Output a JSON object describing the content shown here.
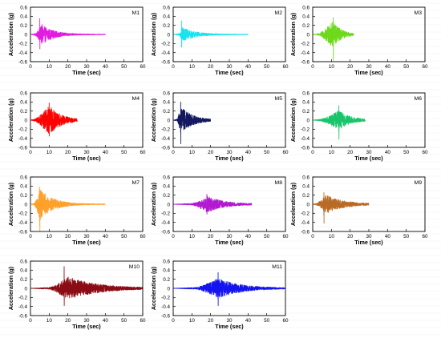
{
  "figure": {
    "xlabel": "Time (sec)",
    "ylabel": "Acceleration (g)",
    "yticks": [
      "0.6",
      "0.4",
      "0.2",
      "0",
      "-0.2",
      "-0.4",
      "-0.6"
    ],
    "xticks": [
      "0",
      "10",
      "20",
      "30",
      "40",
      "50",
      "60"
    ]
  },
  "chart_data": [
    {
      "type": "line",
      "title": "M1",
      "color": "#e21be2",
      "xlim": [
        0,
        60
      ],
      "ylim": [
        -0.6,
        0.6
      ],
      "duration": 40,
      "active_start": 2.5,
      "active_end": 20,
      "peak_time": 5,
      "peak_pos": 0.35,
      "peak_neg": -0.32,
      "envelope_peak": 0.22,
      "envelope_peak_time": 6
    },
    {
      "type": "line",
      "title": "M2",
      "color": "#18e3ef",
      "xlim": [
        0,
        60
      ],
      "ylim": [
        -0.6,
        0.6
      ],
      "duration": 40,
      "active_start": 3,
      "active_end": 20,
      "peak_time": 4.5,
      "peak_pos": 0.3,
      "peak_neg": -0.28,
      "envelope_peak": 0.15,
      "envelope_peak_time": 5
    },
    {
      "type": "line",
      "title": "M3",
      "color": "#6ed91b",
      "xlim": [
        0,
        60
      ],
      "ylim": [
        -0.6,
        0.6
      ],
      "duration": 22,
      "active_start": 3,
      "active_end": 20,
      "peak_time": 11,
      "peak_pos": 0.37,
      "peak_neg": -0.57,
      "envelope_peak": 0.3,
      "envelope_peak_time": 11
    },
    {
      "type": "line",
      "title": "M4",
      "color": "#ff0000",
      "xlim": [
        0,
        60
      ],
      "ylim": [
        -0.6,
        0.6
      ],
      "duration": 25,
      "active_start": 2,
      "active_end": 24,
      "peak_time": 10,
      "peak_pos": 0.38,
      "peak_neg": -0.35,
      "envelope_peak": 0.32,
      "envelope_peak_time": 10
    },
    {
      "type": "line",
      "title": "M5",
      "color": "#14185e",
      "xlim": [
        0,
        60
      ],
      "ylim": [
        -0.6,
        0.6
      ],
      "duration": 20,
      "active_start": 2,
      "active_end": 18,
      "peak_time": 4,
      "peak_pos": 0.4,
      "peak_neg": -0.52,
      "envelope_peak": 0.3,
      "envelope_peak_time": 4
    },
    {
      "type": "line",
      "title": "M6",
      "color": "#19c46a",
      "xlim": [
        0,
        60
      ],
      "ylim": [
        -0.6,
        0.6
      ],
      "duration": 28,
      "active_start": 4,
      "active_end": 27,
      "peak_time": 14,
      "peak_pos": 0.32,
      "peak_neg": -0.42,
      "envelope_peak": 0.22,
      "envelope_peak_time": 14
    },
    {
      "type": "line",
      "title": "M7",
      "color": "#ffa02a",
      "xlim": [
        0,
        60
      ],
      "ylim": [
        -0.6,
        0.6
      ],
      "duration": 40,
      "active_start": 2,
      "active_end": 20,
      "peak_time": 5,
      "peak_pos": 0.38,
      "peak_neg": -0.6,
      "envelope_peak": 0.35,
      "envelope_peak_time": 5
    },
    {
      "type": "line",
      "title": "M8",
      "color": "#b21ad1",
      "xlim": [
        0,
        60
      ],
      "ylim": [
        -0.6,
        0.6
      ],
      "duration": 42,
      "active_start": 10,
      "active_end": 38,
      "peak_time": 18,
      "peak_pos": 0.22,
      "peak_neg": -0.22,
      "envelope_peak": 0.18,
      "envelope_peak_time": 18
    },
    {
      "type": "line",
      "title": "M9",
      "color": "#b96a24",
      "xlim": [
        0,
        60
      ],
      "ylim": [
        -0.6,
        0.6
      ],
      "duration": 30,
      "active_start": 2,
      "active_end": 28,
      "peak_time": 6,
      "peak_pos": 0.26,
      "peak_neg": -0.42,
      "envelope_peak": 0.2,
      "envelope_peak_time": 7
    },
    {
      "type": "line",
      "title": "M10",
      "color": "#8b0c14",
      "xlim": [
        0,
        60
      ],
      "ylim": [
        -0.6,
        0.6
      ],
      "duration": 60,
      "active_start": 10,
      "active_end": 55,
      "peak_time": 18,
      "peak_pos": 0.48,
      "peak_neg": -0.38,
      "envelope_peak": 0.25,
      "envelope_peak_time": 20
    },
    {
      "type": "line",
      "title": "M11",
      "color": "#1414f0",
      "xlim": [
        0,
        60
      ],
      "ylim": [
        -0.6,
        0.6
      ],
      "duration": 60,
      "active_start": 12,
      "active_end": 50,
      "peak_time": 24,
      "peak_pos": 0.35,
      "peak_neg": -0.38,
      "envelope_peak": 0.22,
      "envelope_peak_time": 24
    }
  ]
}
